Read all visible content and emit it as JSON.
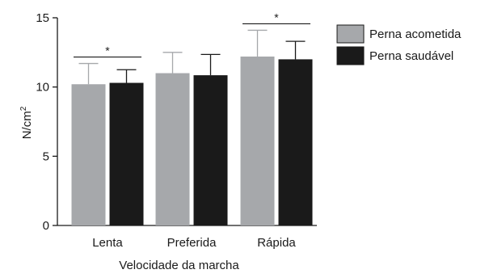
{
  "chart_data": {
    "type": "bar",
    "xlabel": "Velocidade da marcha",
    "ylabel": "N/cm",
    "ylabel_superscript": "2",
    "ylim": [
      0,
      15
    ],
    "yticks": [
      0,
      5,
      10,
      15
    ],
    "categories": [
      "Lenta",
      "Preferida",
      "Rápida"
    ],
    "series": [
      {
        "name": "Perna acometida",
        "values": [
          10.2,
          11.0,
          12.2
        ],
        "errors": [
          1.5,
          1.5,
          1.9
        ],
        "color": "#a6a8ab"
      },
      {
        "name": "Perna saudável",
        "values": [
          10.3,
          10.85,
          12.0
        ],
        "errors": [
          0.95,
          1.5,
          1.3
        ],
        "color": "#1a1a1a"
      }
    ],
    "significance": [
      {
        "category": "Lenta",
        "label": "*"
      },
      {
        "category": "Rápida",
        "label": "*"
      }
    ],
    "legend_position": "top-right",
    "grid": false
  }
}
